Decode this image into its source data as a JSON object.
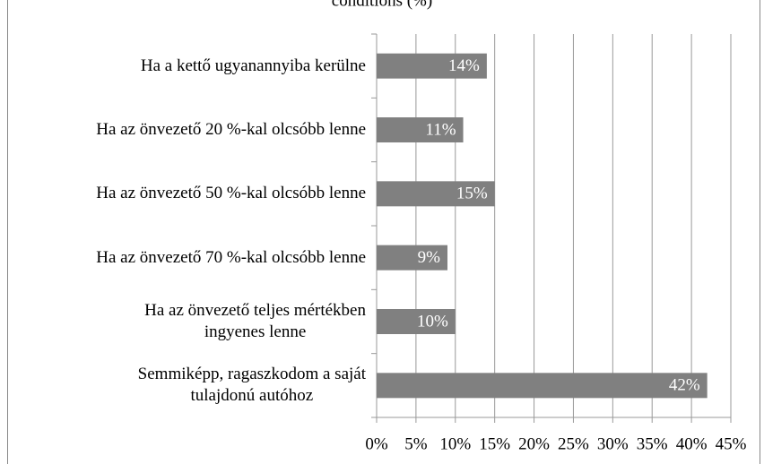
{
  "chart_data": {
    "type": "bar",
    "orientation": "horizontal",
    "title": "conditions (%)",
    "categories": [
      "Ha a kettő ugyanannyiba kerülne",
      "Ha az önvezető 20 %-kal olcsóbb lenne",
      "Ha az önvezető 50 %-kal olcsóbb lenne",
      "Ha az önvezető 70 %-kal olcsóbb lenne",
      "Ha az önvezető teljes mértékben\ningyenes lenne",
      "Semmiképp, ragaszkodom a saját\ntulajdonú autóhoz"
    ],
    "values": [
      14,
      11,
      15,
      9,
      10,
      42
    ],
    "value_labels": [
      "14%",
      "11%",
      "15%",
      "9%",
      "10%",
      "42%"
    ],
    "color": "#808080",
    "xlim": [
      0,
      45
    ],
    "xticks": [
      {
        "value": 0,
        "label": "0%"
      },
      {
        "value": 5,
        "label": "5%"
      },
      {
        "value": 10,
        "label": "10%"
      },
      {
        "value": 15,
        "label": "15%"
      },
      {
        "value": 20,
        "label": "20%"
      },
      {
        "value": 25,
        "label": "25%"
      },
      {
        "value": 30,
        "label": "30%"
      },
      {
        "value": 35,
        "label": "35%"
      },
      {
        "value": 40,
        "label": "40%"
      },
      {
        "value": 45,
        "label": "45%"
      }
    ],
    "grid": true
  }
}
